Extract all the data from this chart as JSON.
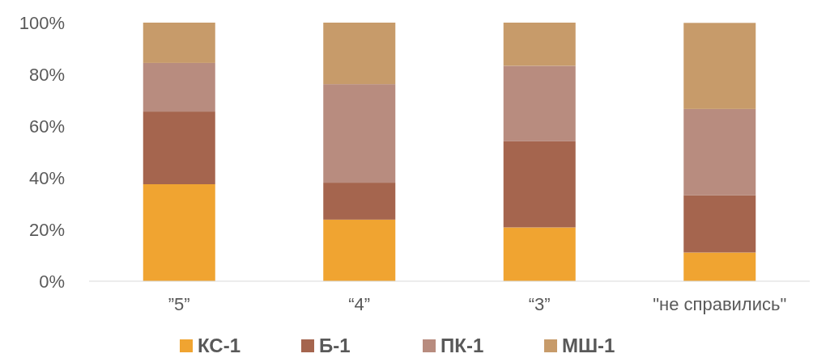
{
  "chart_data": {
    "type": "bar",
    "stacked": true,
    "categories": [
      "”5”",
      "“4”",
      "“3”",
      "\"не справились\""
    ],
    "series": [
      {
        "name": "КС-1",
        "color": "#f0a431",
        "values": [
          37.5,
          23.8,
          20.8,
          11.1
        ]
      },
      {
        "name": "Б-1",
        "color": "#a5654e",
        "values": [
          28.1,
          14.3,
          33.3,
          22.2
        ]
      },
      {
        "name": "ПК-1",
        "color": "#b88c7f",
        "values": [
          18.8,
          38.1,
          29.2,
          33.3
        ]
      },
      {
        "name": "МШ-1",
        "color": "#c79b6a",
        "values": [
          15.6,
          23.8,
          16.7,
          33.3
        ]
      }
    ],
    "ylim": [
      0,
      100
    ],
    "yticks": [
      {
        "value": 0,
        "label": "0%"
      },
      {
        "value": 20,
        "label": "20%"
      },
      {
        "value": 40,
        "label": "40%"
      },
      {
        "value": 60,
        "label": "60%"
      },
      {
        "value": 80,
        "label": "80%"
      },
      {
        "value": 100,
        "label": "100%"
      }
    ],
    "legend": "bottom"
  }
}
